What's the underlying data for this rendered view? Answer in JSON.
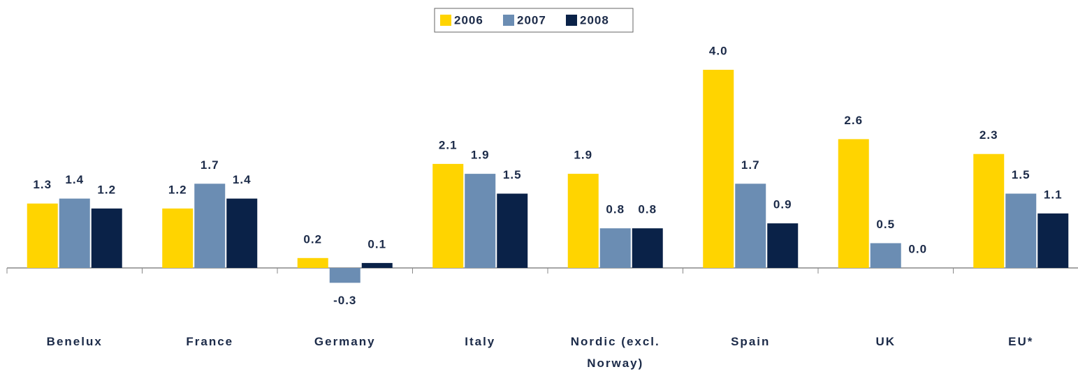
{
  "chart_data": {
    "type": "bar",
    "categories": [
      "Benelux",
      "France",
      "Germany",
      "Italy",
      "Nordic (excl. Norway)",
      "Spain",
      "UK",
      "EU*"
    ],
    "series": [
      {
        "name": "2006",
        "color": "#ffd400",
        "values": [
          1.3,
          1.2,
          0.2,
          2.1,
          1.9,
          4.0,
          2.6,
          2.3
        ],
        "value_labels": [
          "1.3",
          "1.2",
          "0.2",
          "2.1",
          "1.9",
          "4.0",
          "2.6",
          "2.3"
        ]
      },
      {
        "name": "2007",
        "color": "#6b8db3",
        "values": [
          1.4,
          1.7,
          -0.3,
          1.9,
          0.8,
          1.7,
          0.5,
          1.5
        ],
        "value_labels": [
          "1.4",
          "1.7",
          "-0.3",
          "1.9",
          "0.8",
          "1.7",
          "0.5",
          "1.5"
        ]
      },
      {
        "name": "2008",
        "color": "#0a2248",
        "values": [
          1.2,
          1.4,
          0.1,
          1.5,
          0.8,
          0.9,
          0,
          1.1
        ],
        "value_labels": [
          "1.2",
          "1.4",
          "0.1",
          "1.5",
          "0.8",
          "0.9",
          "0.0",
          "1.1"
        ]
      }
    ],
    "legend": "top"
  }
}
